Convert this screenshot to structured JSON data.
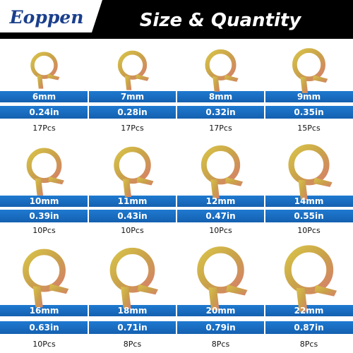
{
  "header": {
    "brand": "Eoppen",
    "title": "Size & Quantity"
  },
  "items": [
    {
      "size_mm": "6mm",
      "size_in": "0.24in",
      "quantity": "17Pcs"
    },
    {
      "size_mm": "7mm",
      "size_in": "0.28in",
      "quantity": "17Pcs"
    },
    {
      "size_mm": "8mm",
      "size_in": "0.32in",
      "quantity": "17Pcs"
    },
    {
      "size_mm": "9mm",
      "size_in": "0.35in",
      "quantity": "15Pcs"
    },
    {
      "size_mm": "10mm",
      "size_in": "0.39in",
      "quantity": "10Pcs"
    },
    {
      "size_mm": "11mm",
      "size_in": "0.43in",
      "quantity": "10Pcs"
    },
    {
      "size_mm": "12mm",
      "size_in": "0.47in",
      "quantity": "10Pcs"
    },
    {
      "size_mm": "14mm",
      "size_in": "0.55in",
      "quantity": "10Pcs"
    },
    {
      "size_mm": "16mm",
      "size_in": "0.63in",
      "quantity": "10Pcs"
    },
    {
      "size_mm": "18mm",
      "size_in": "0.71in",
      "quantity": "8Pcs"
    },
    {
      "size_mm": "20mm",
      "size_in": "0.79in",
      "quantity": "8Pcs"
    },
    {
      "size_mm": "22mm",
      "size_in": "0.87in",
      "quantity": "8Pcs"
    }
  ]
}
